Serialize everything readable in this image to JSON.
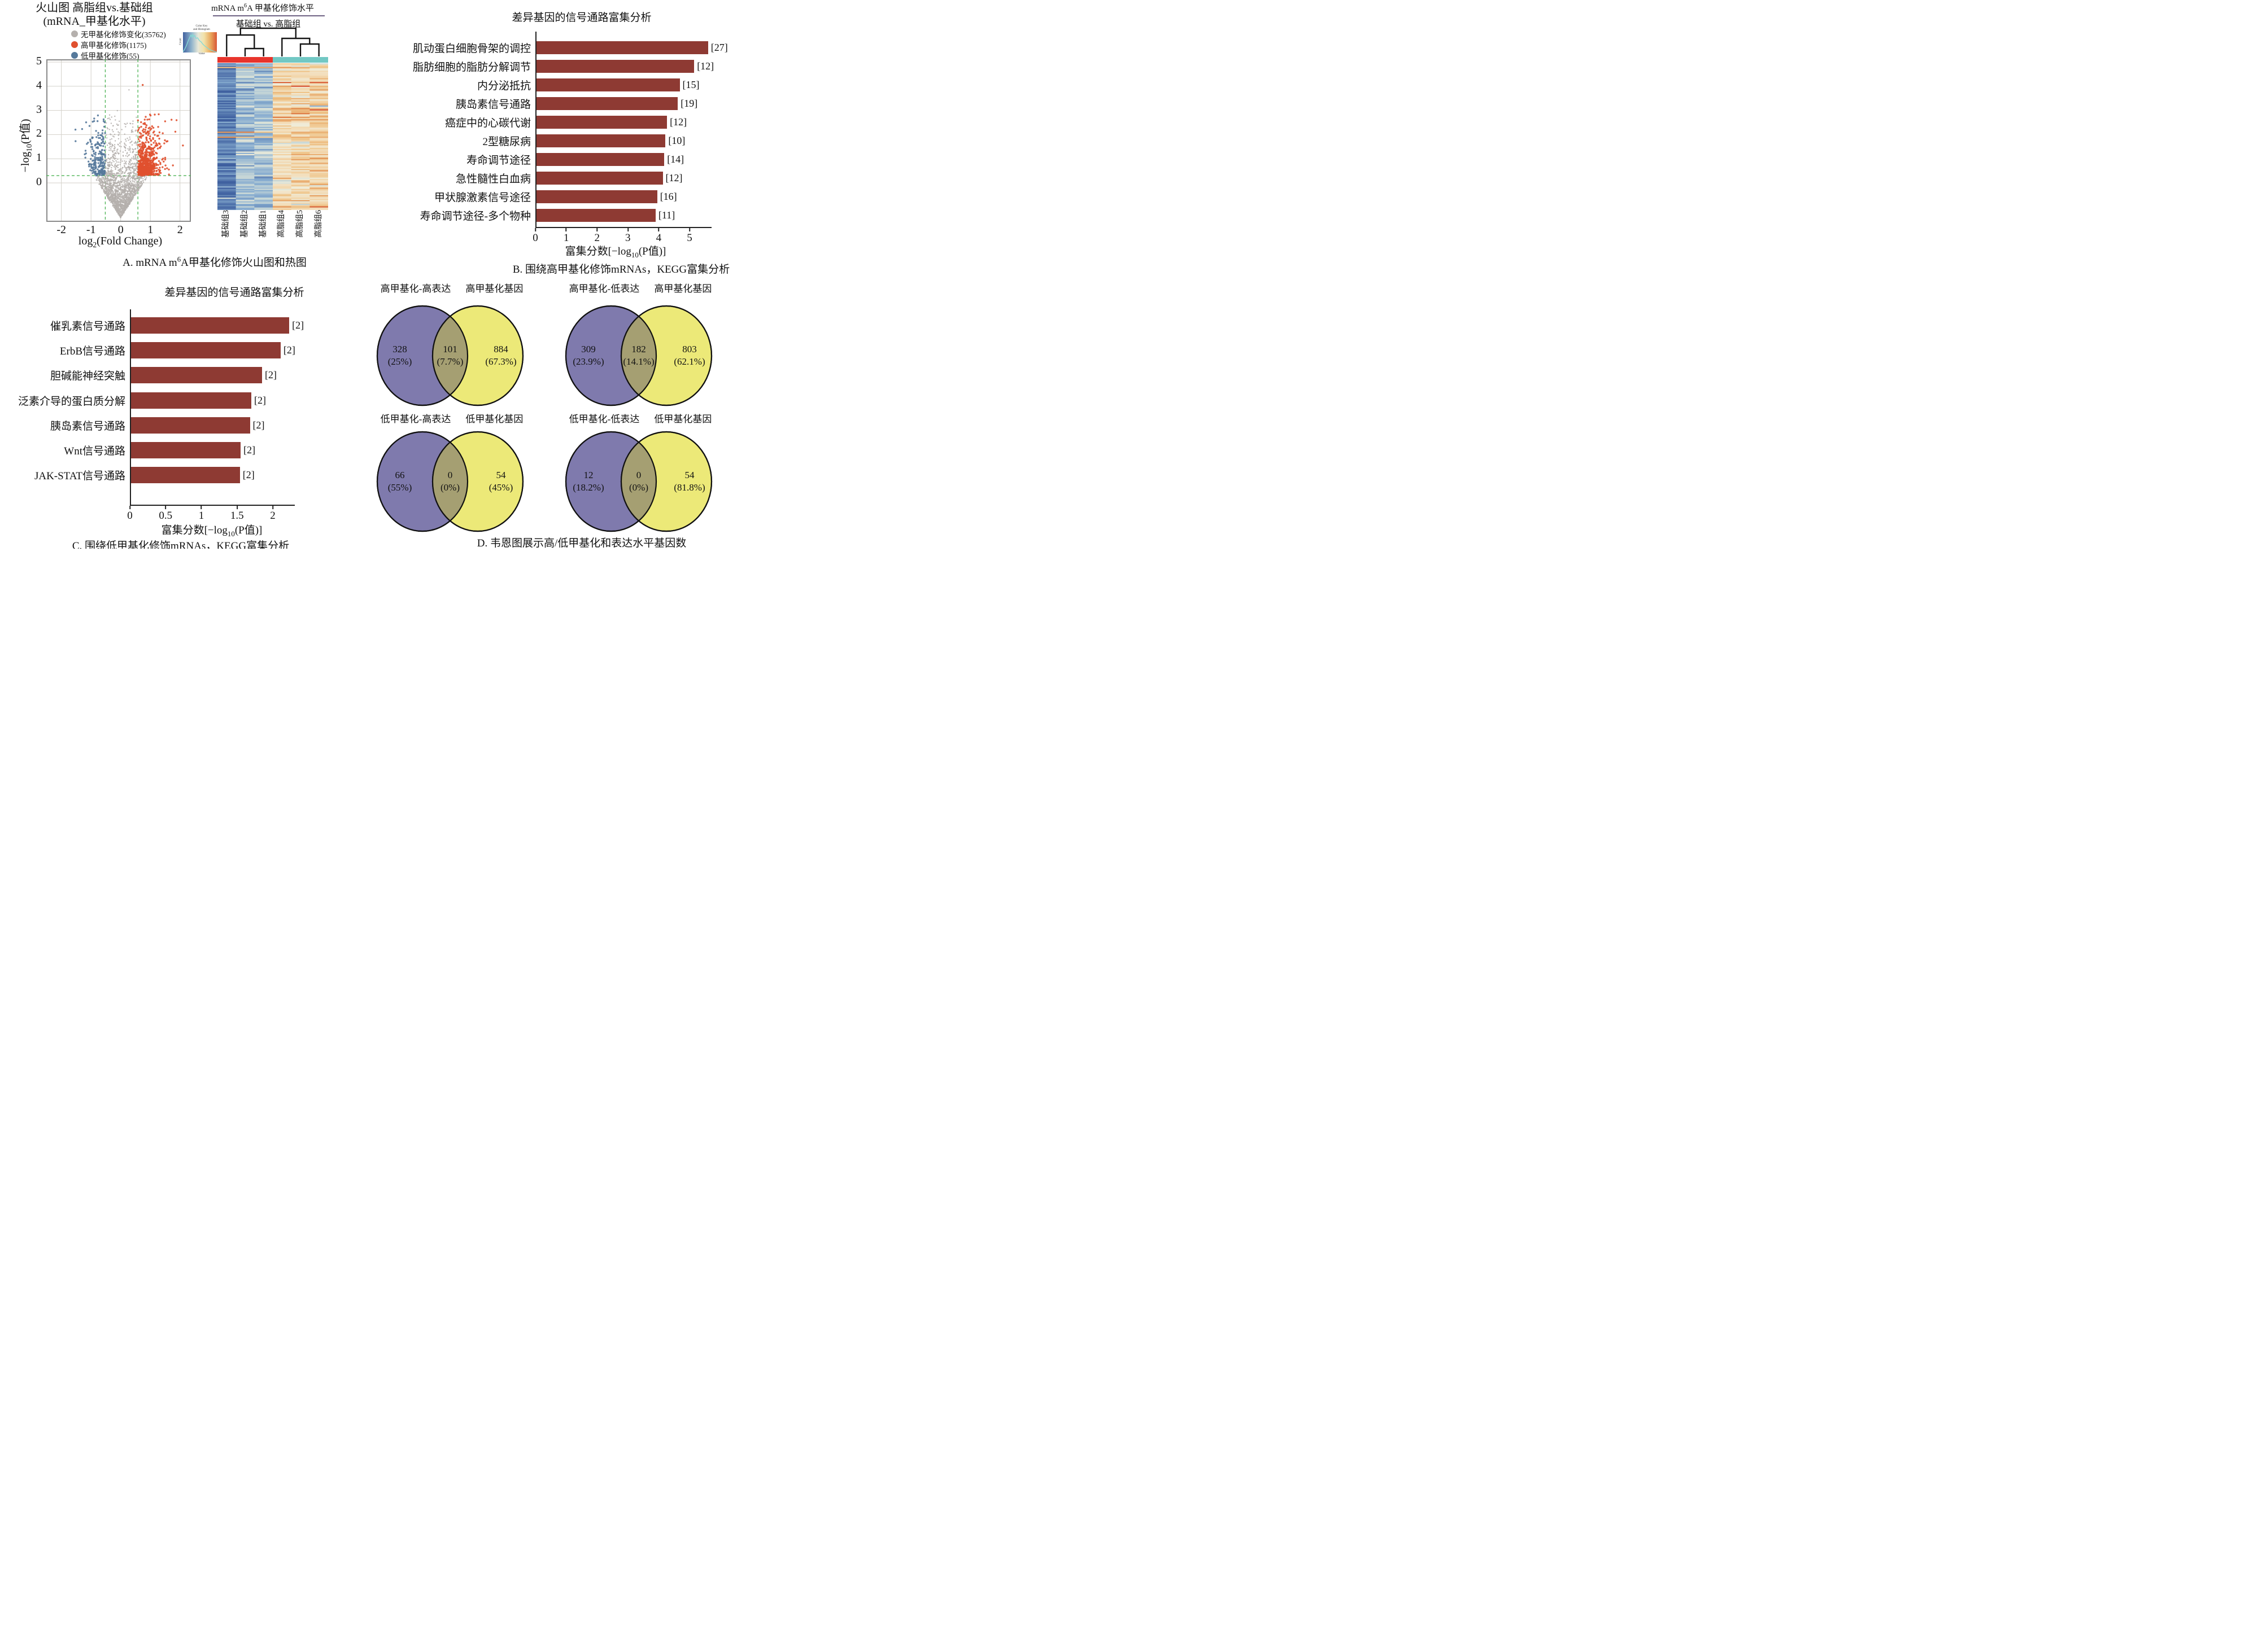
{
  "colors": {
    "text": "#111111",
    "bar": "#8e3a33",
    "volcano_gray": "#b5b0ad",
    "volcano_red": "#e0502f",
    "volcano_blue": "#56799b",
    "threshold_green": "#3fae47",
    "heat_group_left": "#e8342c",
    "heat_group_right": "#72c8c4",
    "heat_underline": "#6e6283",
    "venn_left": "#7f7aad",
    "venn_right": "#ece978",
    "venn_overlap": "#a59f72"
  },
  "panel_a": {
    "volcano": {
      "title_line1": "火山图 高脂组vs.基础组",
      "title_line2": "(mRNA_甲基化水平)",
      "legend": [
        {
          "label": "无甲基化修饰变化(35762)",
          "color": "#b5b0ad"
        },
        {
          "label": "高甲基化修饰(1175)",
          "color": "#e0502f"
        },
        {
          "label": "低甲基化修饰(55)",
          "color": "#56799b"
        }
      ],
      "ylabel_pre": "−log",
      "ylabel_sub": "10",
      "ylabel_post": "(P值)",
      "xlabel_pre": "log",
      "xlabel_sub": "2",
      "xlabel_post": "(Fold Change)"
    },
    "heatmap": {
      "title_pre": "mRNA m",
      "title_sup": "6",
      "title_post": "A 甲基化修饰水平",
      "subtitle": "基础组 vs. 高脂组",
      "color_key_title_line1": "Color Key",
      "color_key_title_line2": "and Histogram",
      "color_key_xlabel": "Value",
      "color_key_ylabel": "Count",
      "column_labels": [
        "基础组3",
        "基础组2",
        "基础组1",
        "高脂组4",
        "高脂组5",
        "高脂组6"
      ]
    },
    "caption_pre": "A. mRNA m",
    "caption_sup": "6",
    "caption_post": "A甲基化修饰火山图和热图"
  },
  "panel_b": {
    "xlabel_pre": "富集分数[−log",
    "xlabel_sub": "10",
    "xlabel_post": "(P值)]",
    "caption": "B. 围绕高甲基化修饰mRNAs，KEGG富集分析"
  },
  "panel_c": {
    "xlabel_pre": "富集分数[−log",
    "xlabel_sub": "10",
    "xlabel_post": "(P值)]",
    "caption": "C. 围绕低甲基化修饰mRNAs，KEGG富集分析"
  },
  "panel_d": {
    "caption": "D. 韦恩图展示高/低甲基化和表达水平基因数"
  },
  "chart_data": [
    {
      "type": "scatter",
      "name": "volcano",
      "title": "火山图 高脂组vs.基础组(mRNA_甲基化水平)",
      "xlabel": "log2(Fold Change)",
      "ylabel": "-log10(P值)",
      "xlim": [
        -2.5,
        2.35
      ],
      "ylim": [
        -1.6,
        5.1
      ],
      "x_ticks": [
        -2,
        -1,
        0,
        1,
        2
      ],
      "y_ticks": [
        0,
        1,
        2,
        3,
        4,
        5
      ],
      "threshold_x": [
        -0.52,
        0.58
      ],
      "threshold_y": 0.3,
      "series": [
        {
          "name": "无甲基化修饰变化",
          "count": 35762
        },
        {
          "name": "高甲基化修饰",
          "count": 1175
        },
        {
          "name": "低甲基化修饰",
          "count": 55
        }
      ]
    },
    {
      "type": "heatmap",
      "name": "m6a_heatmap",
      "title": "mRNA m6A 甲基化修饰水平",
      "subtitle": "基础组 vs. 高脂组",
      "columns": [
        "基础组3",
        "基础组2",
        "基础组1",
        "高脂组4",
        "高脂组5",
        "高脂组6"
      ],
      "column_groups": [
        "基础组",
        "基础组",
        "基础组",
        "高脂组",
        "高脂组",
        "高脂组"
      ],
      "column_mean_level": [
        -0.85,
        -0.38,
        -0.34,
        0.42,
        0.5,
        0.52
      ],
      "palette_low_to_high": [
        "#3d5e9e",
        "#88add0",
        "#cfdcd8",
        "#efecd9",
        "#f3debb",
        "#efc489",
        "#e08a4b",
        "#d85636"
      ]
    },
    {
      "type": "bar",
      "name": "kegg_hyper",
      "title": "差异基因的信号通路富集分析",
      "xlabel": "富集分数[-log10(P值)]",
      "categories": [
        "肌动蛋白细胞骨架的调控",
        "脂肪细胞的脂肪分解调节",
        "内分泌抵抗",
        "胰岛素信号通路",
        "癌症中的心碳代谢",
        "2型糖尿病",
        "寿命调节途径",
        "急性髓性白血病",
        "甲状腺激素信号途径",
        "寿命调节途径-多个物种"
      ],
      "values": [
        5.6,
        5.15,
        4.68,
        4.62,
        4.27,
        4.22,
        4.18,
        4.13,
        3.95,
        3.9
      ],
      "gene_counts": [
        27,
        12,
        15,
        19,
        12,
        10,
        14,
        12,
        16,
        11
      ],
      "xlim": [
        0,
        5.7
      ],
      "x_ticks": [
        0,
        1,
        2,
        3,
        4,
        5
      ]
    },
    {
      "type": "bar",
      "name": "kegg_hypo",
      "title": "差异基因的信号通路富集分析",
      "xlabel": "富集分数[-log10(P值)]",
      "categories": [
        "催乳素信号通路",
        "ErbB信号通路",
        "胆碱能神经突触",
        "泛素介导的蛋白质分解",
        "胰岛素信号通路",
        "Wnt信号通路",
        "JAK-STAT信号通路"
      ],
      "values": [
        2.23,
        2.11,
        1.85,
        1.7,
        1.68,
        1.55,
        1.54
      ],
      "gene_counts": [
        2,
        2,
        2,
        2,
        2,
        2,
        2
      ],
      "xlim": [
        0,
        2.3
      ],
      "x_ticks": [
        0,
        0.5,
        1,
        1.5,
        2
      ]
    },
    {
      "type": "venn",
      "name": "methylation_expression_venns",
      "sets": [
        {
          "left_label": "高甲基化-高表达",
          "right_label": "高甲基化基因",
          "left_only": 328,
          "left_pct": "(25%)",
          "overlap": 101,
          "overlap_pct": "(7.7%)",
          "right_only": 884,
          "right_pct": "(67.3%)"
        },
        {
          "left_label": "高甲基化-低表达",
          "right_label": "高甲基化基因",
          "left_only": 309,
          "left_pct": "(23.9%)",
          "overlap": 182,
          "overlap_pct": "(14.1%)",
          "right_only": 803,
          "right_pct": "(62.1%)"
        },
        {
          "left_label": "低甲基化-高表达",
          "right_label": "低甲基化基因",
          "left_only": 66,
          "left_pct": "(55%)",
          "overlap": 0,
          "overlap_pct": "(0%)",
          "right_only": 54,
          "right_pct": "(45%)"
        },
        {
          "left_label": "低甲基化-低表达",
          "right_label": "低甲基化基因",
          "left_only": 12,
          "left_pct": "(18.2%)",
          "overlap": 0,
          "overlap_pct": "(0%)",
          "right_only": 54,
          "right_pct": "(81.8%)"
        }
      ]
    }
  ]
}
